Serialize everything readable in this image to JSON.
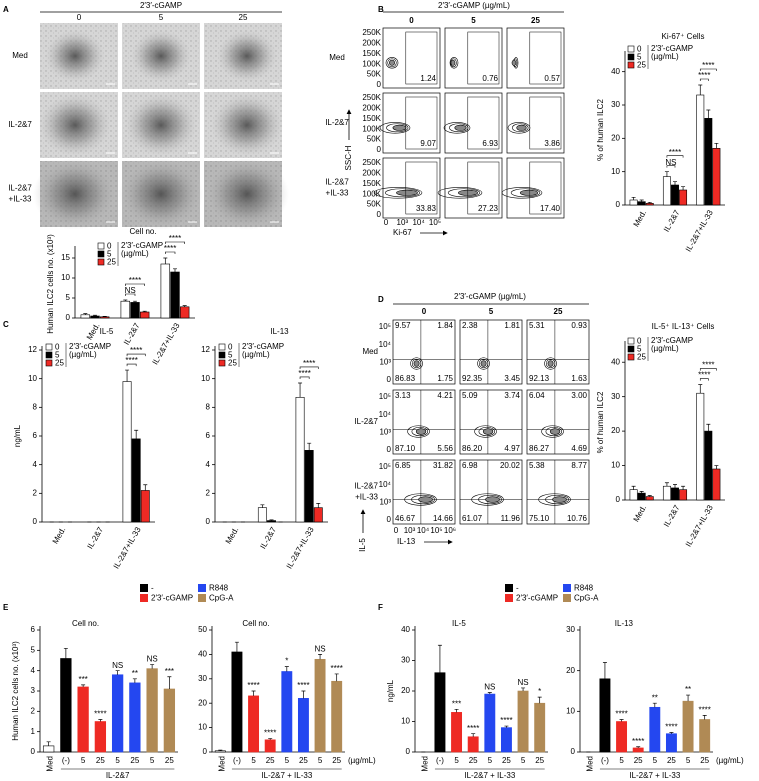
{
  "panel_labels": [
    "A",
    "B",
    "C",
    "D",
    "E",
    "F"
  ],
  "micrographs": {
    "header": "2′3′-cGAMP",
    "columns": [
      "0",
      "5",
      "25"
    ],
    "rows": [
      [
        "Med"
      ],
      [
        "IL-2&7"
      ],
      [
        "IL-2&7",
        "+IL-33"
      ]
    ]
  },
  "flow_B": {
    "header": "2′3′-cGAMP (µg/mL)",
    "columns": [
      "0",
      "5",
      "25"
    ],
    "rows": [
      [
        "Med"
      ],
      [
        "IL-2&7"
      ],
      [
        "IL-2&7",
        "+IL-33"
      ]
    ],
    "y_label": "SSC-H",
    "x_label": "Ki-67",
    "y_ticks": [
      "0",
      "50K",
      "100K",
      "150K",
      "200K",
      "250K"
    ],
    "x_ticks": [
      "0",
      "10³",
      "10⁴",
      "10⁵"
    ],
    "gates": [
      [
        "1.24",
        "0.76",
        "0.57"
      ],
      [
        "9.07",
        "6.93",
        "3.86"
      ],
      [
        "33.83",
        "27.23",
        "17.40"
      ]
    ]
  },
  "flow_D": {
    "header": "2′3′-cGAMP (µg/mL)",
    "columns": [
      "0",
      "5",
      "25"
    ],
    "rows": [
      [
        "Med"
      ],
      [
        "IL-2&7"
      ],
      [
        "IL-2&7",
        "+IL-33"
      ]
    ],
    "y_label": "IL-5",
    "x_label": "IL-13",
    "y_ticks": [
      "0",
      "10³",
      "10⁴",
      "10⁵"
    ],
    "x_ticks": [
      "0",
      "10³",
      "10⁴",
      "10⁵",
      "10⁶"
    ],
    "quadrants": [
      [
        [
          "9.57",
          "1.84",
          "86.83",
          "1.75"
        ],
        [
          "2.38",
          "1.81",
          "92.35",
          "3.45"
        ],
        [
          "5.31",
          "0.93",
          "92.13",
          "1.63"
        ]
      ],
      [
        [
          "3.13",
          "4.21",
          "87.10",
          "5.56"
        ],
        [
          "5.09",
          "3.74",
          "86.20",
          "4.97"
        ],
        [
          "6.04",
          "3.00",
          "86.27",
          "4.69"
        ]
      ],
      [
        [
          "6.85",
          "31.82",
          "46.67",
          "14.66"
        ],
        [
          "6.98",
          "20.02",
          "61.07",
          "11.96"
        ],
        [
          "5.38",
          "8.77",
          "75.10",
          "10.76"
        ]
      ]
    ]
  },
  "chart_data": [
    {
      "type": "grouped_bar",
      "title": "Cell no.",
      "ylabel": "Human ILC2 cells no. (x10³)",
      "categories": [
        "Med.",
        "IL-2&7",
        "IL-2&7+IL-33"
      ],
      "series": [
        {
          "name": "0",
          "color": "#ffffff",
          "values": [
            0.8,
            4.2,
            13.5
          ],
          "errors": [
            0.3,
            0.3,
            1.5
          ]
        },
        {
          "name": "5",
          "color": "#000000",
          "values": [
            0.5,
            3.9,
            11.5
          ],
          "errors": [
            0.2,
            0.3,
            0.8
          ]
        },
        {
          "name": "25",
          "color": "#ee2a24",
          "values": [
            0.3,
            1.5,
            2.8
          ],
          "errors": [
            0.1,
            0.2,
            0.3
          ]
        }
      ],
      "legend_title": [
        "2′3′-cGAMP",
        "(µg/mL)"
      ],
      "ylim": [
        0,
        17
      ],
      "yticks": [
        0,
        5,
        10,
        15
      ],
      "annotations": [
        {
          "text": "NS",
          "category": 1,
          "series": [
            0,
            1
          ]
        },
        {
          "text": "****",
          "category": 1,
          "series": [
            0,
            2
          ]
        },
        {
          "text": "****",
          "category": 2,
          "series": [
            0,
            1
          ]
        },
        {
          "text": "****",
          "category": 2,
          "series": [
            0,
            2
          ]
        }
      ]
    },
    {
      "type": "grouped_bar",
      "title": "Ki-67⁺ Cells",
      "ylabel": "% of human ILC2",
      "categories": [
        "Med.",
        "IL-2&7",
        "IL-2&7+IL-33"
      ],
      "series": [
        {
          "name": "0",
          "color": "#ffffff",
          "values": [
            1.5,
            8.5,
            33
          ],
          "errors": [
            0.8,
            1.5,
            3
          ]
        },
        {
          "name": "5",
          "color": "#000000",
          "values": [
            1,
            6,
            26
          ],
          "errors": [
            0.5,
            1,
            2.5
          ]
        },
        {
          "name": "25",
          "color": "#ee2a24",
          "values": [
            0.5,
            4.5,
            17
          ],
          "errors": [
            0.3,
            1,
            1.5
          ]
        }
      ],
      "legend_title": [
        "2′3′-cGAMP",
        "(µg/mL)"
      ],
      "ylim": [
        0,
        45
      ],
      "yticks": [
        0,
        10,
        20,
        30,
        40
      ],
      "annotations": [
        {
          "text": "NS",
          "category": 1,
          "series": [
            0,
            1
          ]
        },
        {
          "text": "****",
          "category": 1,
          "series": [
            0,
            2
          ]
        },
        {
          "text": "****",
          "category": 2,
          "series": [
            0,
            1
          ]
        },
        {
          "text": "****",
          "category": 2,
          "series": [
            0,
            2
          ]
        }
      ]
    },
    {
      "type": "grouped_bar",
      "title": "IL-5",
      "ylabel": "ng/mL",
      "categories": [
        "Med.",
        "IL-2&7",
        "IL-2&7+IL-33"
      ],
      "series": [
        {
          "name": "0",
          "color": "#ffffff",
          "values": [
            0,
            0,
            9.8
          ],
          "errors": [
            0,
            0,
            0.8
          ]
        },
        {
          "name": "5",
          "color": "#000000",
          "values": [
            0,
            0,
            5.8
          ],
          "errors": [
            0,
            0,
            0.6
          ]
        },
        {
          "name": "25",
          "color": "#ee2a24",
          "values": [
            0,
            0,
            2.2
          ],
          "errors": [
            0,
            0,
            0.4
          ]
        }
      ],
      "legend_title": [
        "2′3′-cGAMP",
        "(µg/mL)"
      ],
      "ylim": [
        0,
        12
      ],
      "yticks": [
        0,
        2,
        4,
        6,
        8,
        10,
        12
      ],
      "annotations": [
        {
          "text": "****",
          "category": 2,
          "series": [
            0,
            1
          ]
        },
        {
          "text": "****",
          "category": 2,
          "series": [
            0,
            2
          ]
        }
      ]
    },
    {
      "type": "grouped_bar",
      "title": "IL-13",
      "categories": [
        "Med.",
        "IL-2&7",
        "IL-2&7+IL-33"
      ],
      "series": [
        {
          "name": "0",
          "color": "#ffffff",
          "values": [
            0,
            1,
            8.7
          ],
          "errors": [
            0,
            0.2,
            1
          ]
        },
        {
          "name": "5",
          "color": "#000000",
          "values": [
            0,
            0.1,
            5
          ],
          "errors": [
            0,
            0.05,
            0.5
          ]
        },
        {
          "name": "25",
          "color": "#ee2a24",
          "values": [
            0,
            0,
            1
          ],
          "errors": [
            0,
            0,
            0.3
          ]
        }
      ],
      "legend_title": [
        "2′3′-cGAMP",
        "(µg/mL)"
      ],
      "ylim": [
        0,
        12
      ],
      "yticks": [
        0,
        2,
        4,
        6,
        8,
        10,
        12
      ],
      "annotations": [
        {
          "text": "****",
          "category": 2,
          "series": [
            0,
            1
          ]
        },
        {
          "text": "****",
          "category": 2,
          "series": [
            0,
            2
          ]
        }
      ]
    },
    {
      "type": "grouped_bar",
      "title": "IL-5⁺ IL-13⁺ Cells",
      "ylabel": "% of human ILC2",
      "categories": [
        "Med.",
        "IL-2&7",
        "IL-2&7+IL-33"
      ],
      "series": [
        {
          "name": "0",
          "color": "#ffffff",
          "values": [
            3,
            4,
            31
          ],
          "errors": [
            1,
            1,
            2.5
          ]
        },
        {
          "name": "5",
          "color": "#000000",
          "values": [
            2,
            3.5,
            20
          ],
          "errors": [
            0.5,
            1,
            2
          ]
        },
        {
          "name": "25",
          "color": "#ee2a24",
          "values": [
            1,
            3,
            9
          ],
          "errors": [
            0.3,
            1,
            1
          ]
        }
      ],
      "legend_title": [
        "2′3′-cGAMP",
        "(µg/mL)"
      ],
      "ylim": [
        0,
        45
      ],
      "yticks": [
        0,
        10,
        20,
        30,
        40
      ],
      "annotations": [
        {
          "text": "****",
          "category": 2,
          "series": [
            0,
            1
          ]
        },
        {
          "text": "****",
          "category": 2,
          "series": [
            0,
            2
          ]
        }
      ]
    },
    {
      "type": "bar",
      "title": "Cell no.",
      "ylabel": "Human ILC2 cells no. (x10³)",
      "legend": [
        {
          "name": "-",
          "color": "#000000"
        },
        {
          "name": "2′3′-cGAMP",
          "color": "#ee2a24"
        },
        {
          "name": "R848",
          "color": "#2447f0"
        },
        {
          "name": "CpG-A",
          "color": "#b08a55"
        }
      ],
      "categories": [
        "Med",
        "(-)",
        "5",
        "25",
        "5",
        "25",
        "5",
        "25"
      ],
      "colors": [
        "#ffffff",
        "#000000",
        "#ee2a24",
        "#ee2a24",
        "#2447f0",
        "#2447f0",
        "#b08a55",
        "#b08a55"
      ],
      "values": [
        0.3,
        4.6,
        3.2,
        1.5,
        3.8,
        3.4,
        4.1,
        3.1
      ],
      "errors": [
        0.2,
        0.5,
        0.1,
        0.1,
        0.2,
        0.2,
        0.2,
        0.6
      ],
      "group_label": "IL-2&7",
      "ylim": [
        0,
        6
      ],
      "yticks": [
        0,
        1,
        2,
        3,
        4,
        5,
        6
      ],
      "annotations": [
        {
          "text": "***",
          "category": 2
        },
        {
          "text": "****",
          "category": 3
        },
        {
          "text": "NS",
          "category": 4
        },
        {
          "text": "**",
          "category": 5
        },
        {
          "text": "NS",
          "category": 6
        },
        {
          "text": "***",
          "category": 7
        }
      ]
    },
    {
      "type": "bar",
      "title": "Cell no.",
      "categories": [
        "Med",
        "(-)",
        "5",
        "25",
        "5",
        "25",
        "5",
        "25"
      ],
      "colors": [
        "#ffffff",
        "#000000",
        "#ee2a24",
        "#ee2a24",
        "#2447f0",
        "#2447f0",
        "#b08a55",
        "#b08a55"
      ],
      "values": [
        0.5,
        41,
        23,
        5,
        33,
        22,
        38,
        29
      ],
      "errors": [
        0.3,
        4,
        2,
        0.5,
        2,
        3,
        2,
        3
      ],
      "group_label": "IL-2&7 + IL-33",
      "unit_label": "(µg/mL)",
      "ylim": [
        0,
        50
      ],
      "yticks": [
        0,
        10,
        20,
        30,
        40,
        50
      ],
      "annotations": [
        {
          "text": "****",
          "category": 2
        },
        {
          "text": "****",
          "category": 3
        },
        {
          "text": "*",
          "category": 4
        },
        {
          "text": "****",
          "category": 5
        },
        {
          "text": "NS",
          "category": 6
        },
        {
          "text": "****",
          "category": 7
        }
      ]
    },
    {
      "type": "bar",
      "title": "IL-5",
      "ylabel": "ng/mL",
      "legend": [
        {
          "name": "-",
          "color": "#000000"
        },
        {
          "name": "2′3′-cGAMP",
          "color": "#ee2a24"
        },
        {
          "name": "R848",
          "color": "#2447f0"
        },
        {
          "name": "CpG-A",
          "color": "#b08a55"
        }
      ],
      "categories": [
        "Med",
        "(-)",
        "5",
        "25",
        "5",
        "25",
        "5",
        "25"
      ],
      "colors": [
        "#ffffff",
        "#000000",
        "#ee2a24",
        "#ee2a24",
        "#2447f0",
        "#2447f0",
        "#b08a55",
        "#b08a55"
      ],
      "values": [
        0,
        26,
        13,
        5,
        19,
        8,
        20,
        16
      ],
      "errors": [
        0,
        9,
        1,
        1,
        0.5,
        0.5,
        1,
        2
      ],
      "group_label": "IL-2&7 + IL-33",
      "ylim": [
        0,
        40
      ],
      "yticks": [
        0,
        10,
        20,
        30,
        40
      ],
      "annotations": [
        {
          "text": "***",
          "category": 2
        },
        {
          "text": "****",
          "category": 3
        },
        {
          "text": "NS",
          "category": 4
        },
        {
          "text": "****",
          "category": 5
        },
        {
          "text": "NS",
          "category": 6
        },
        {
          "text": "*",
          "category": 7
        }
      ]
    },
    {
      "type": "bar",
      "title": "IL-13",
      "categories": [
        "Med",
        "(-)",
        "5",
        "25",
        "5",
        "25",
        "5",
        "25"
      ],
      "colors": [
        "#ffffff",
        "#000000",
        "#ee2a24",
        "#ee2a24",
        "#2447f0",
        "#2447f0",
        "#b08a55",
        "#b08a55"
      ],
      "values": [
        0,
        18,
        7.5,
        1,
        11,
        4.5,
        12.5,
        8
      ],
      "errors": [
        0,
        4,
        0.5,
        0.3,
        1,
        0.3,
        1.5,
        1
      ],
      "group_label": "IL-2&7 + IL-33",
      "unit_label": "(µg/mL)",
      "ylim": [
        0,
        30
      ],
      "yticks": [
        0,
        10,
        20,
        30
      ],
      "annotations": [
        {
          "text": "****",
          "category": 2
        },
        {
          "text": "****",
          "category": 3
        },
        {
          "text": "**",
          "category": 4
        },
        {
          "text": "****",
          "category": 5
        },
        {
          "text": "**",
          "category": 6
        },
        {
          "text": "****",
          "category": 7
        }
      ]
    }
  ]
}
